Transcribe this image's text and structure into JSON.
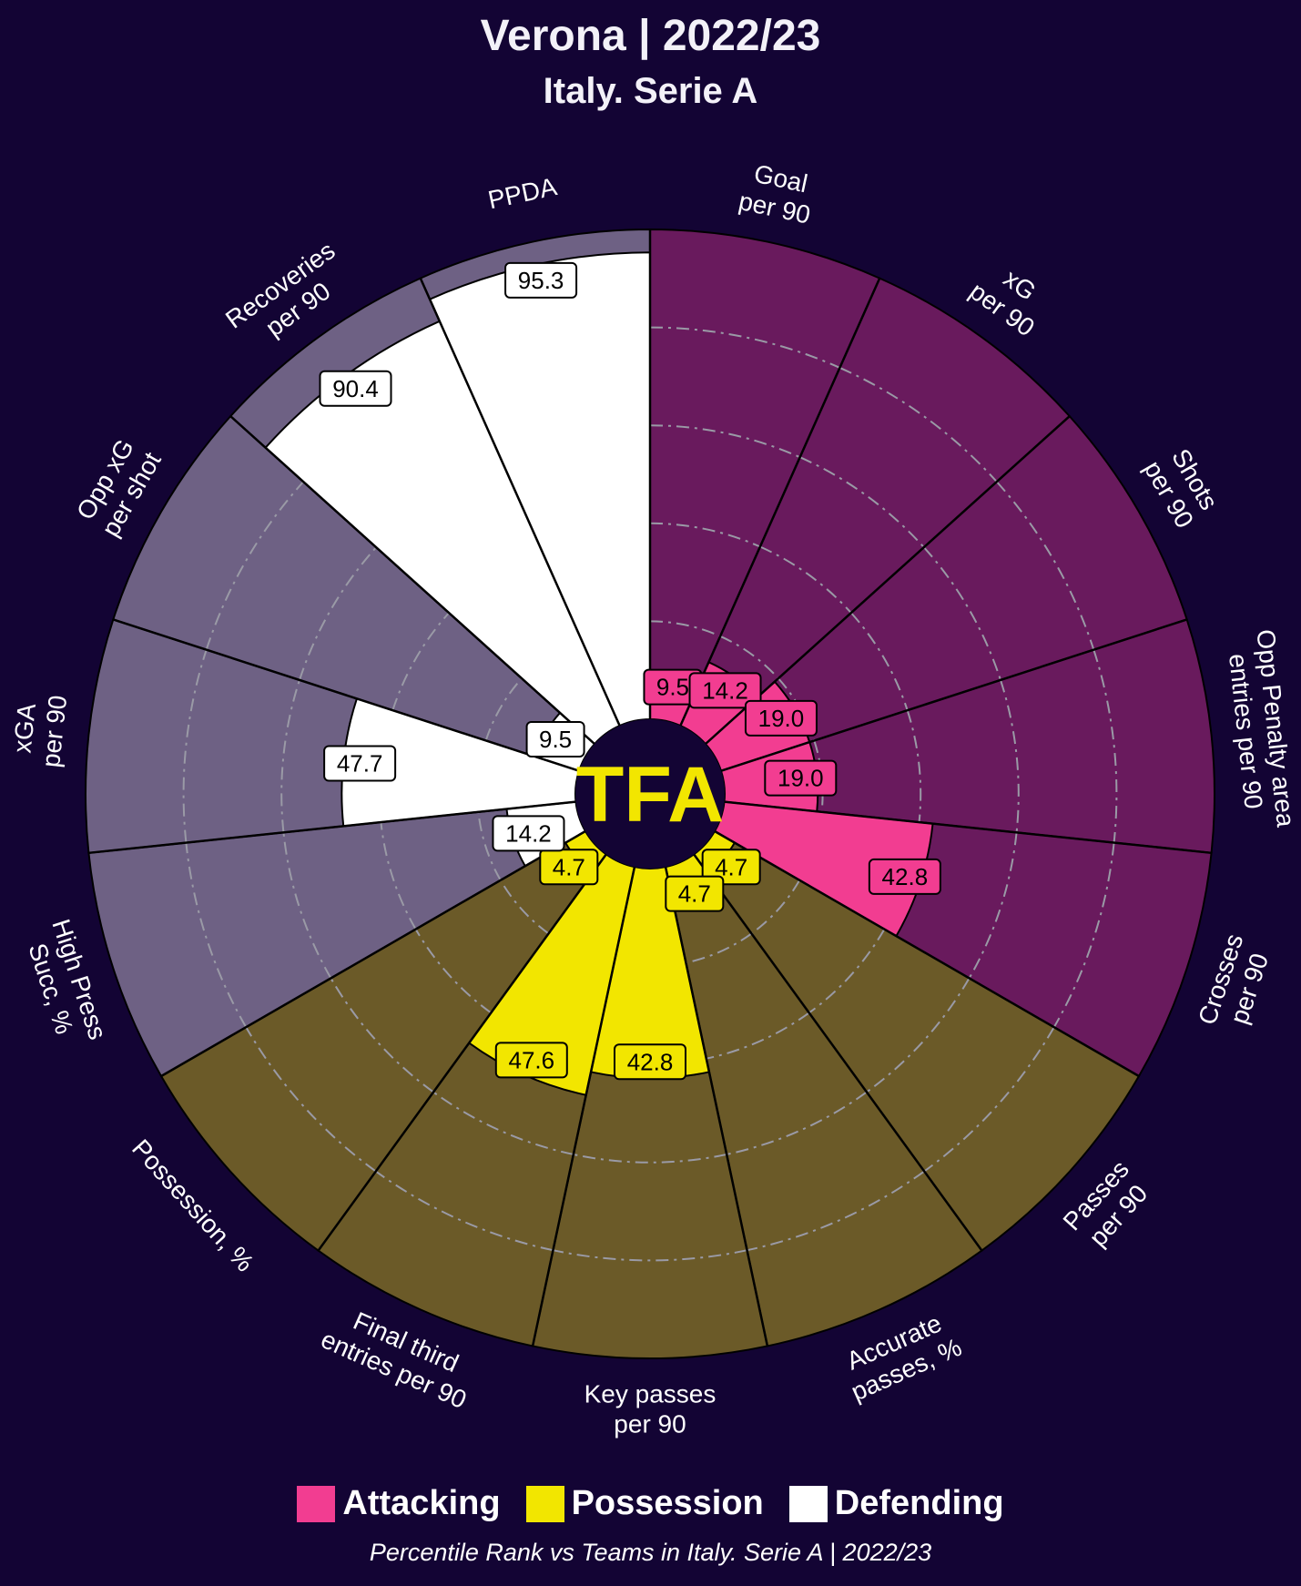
{
  "header": {
    "title": "Verona | 2022/23",
    "subtitle": "Italy. Serie A"
  },
  "logo": {
    "text": "TFA",
    "color": "#f2e600"
  },
  "legend": [
    {
      "label": "Attacking",
      "color": "#f23d91"
    },
    {
      "label": "Possession",
      "color": "#f2e600"
    },
    {
      "label": "Defending",
      "color": "#ffffff"
    }
  ],
  "footer": "Percentile Rank vs Teams in Italy. Serie A | 2022/23",
  "colors": {
    "background": "#130434",
    "Attacking": {
      "bar": "#f23d91",
      "slice": "#691a5d"
    },
    "Possession": {
      "bar": "#f2e600",
      "slice": "#6b5a28"
    },
    "Defending": {
      "bar": "#ffffff",
      "slice": "#6e6184"
    }
  },
  "chart_data": {
    "type": "pizza",
    "value_scale": "percentile",
    "range": [
      0,
      100
    ],
    "gridlines": [
      20,
      40,
      60,
      80
    ],
    "start_angle_deg": 90,
    "direction": "clockwise",
    "categories": [
      {
        "metric": "Goal per 90",
        "group": "Attacking",
        "value": 9.5
      },
      {
        "metric": "xG per 90",
        "group": "Attacking",
        "value": 14.2
      },
      {
        "metric": "Shots per 90",
        "group": "Attacking",
        "value": 19.0
      },
      {
        "metric": "Opp Penalty area entries per 90",
        "group": "Attacking",
        "value": 19.0
      },
      {
        "metric": "Crosses per 90",
        "group": "Attacking",
        "value": 42.8
      },
      {
        "metric": "Passes per 90",
        "group": "Possession",
        "value": 4.7
      },
      {
        "metric": "Accurate passes, %",
        "group": "Possession",
        "value": 4.7
      },
      {
        "metric": "Key passes per 90",
        "group": "Possession",
        "value": 42.8
      },
      {
        "metric": "Final third entries per 90",
        "group": "Possession",
        "value": 47.6
      },
      {
        "metric": "Possession, %",
        "group": "Possession",
        "value": 4.7
      },
      {
        "metric": "High Press Succ, %",
        "group": "Defending",
        "value": 14.2
      },
      {
        "metric": "xGA per 90",
        "group": "Defending",
        "value": 47.7
      },
      {
        "metric": "Opp xG per shot",
        "group": "Defending",
        "value": 9.5
      },
      {
        "metric": "Recoveries per 90",
        "group": "Defending",
        "value": 90.4
      },
      {
        "metric": "PPDA",
        "group": "Defending",
        "value": 95.3
      }
    ],
    "param_labels": [
      [
        "Goal",
        "per 90"
      ],
      [
        "xG",
        "per 90"
      ],
      [
        "Shots",
        "per 90"
      ],
      [
        "Opp Penalty area",
        "entries per 90"
      ],
      [
        "Crosses",
        "per 90"
      ],
      [
        "Passes",
        "per 90"
      ],
      [
        "Accurate",
        "passes, %"
      ],
      [
        "Key passes",
        "per 90"
      ],
      [
        "Final third",
        "entries per 90"
      ],
      [
        "Possession, %"
      ],
      [
        "High Press",
        "Succ, %"
      ],
      [
        "xGA",
        "per 90"
      ],
      [
        "Opp xG",
        "per shot"
      ],
      [
        "Recoveries",
        "per 90"
      ],
      [
        "PPDA"
      ]
    ],
    "value_labels": [
      "9.5",
      "14.2",
      "19.0",
      "19.0",
      "42.8",
      "4.7",
      "4.7",
      "42.8",
      "47.6",
      "4.7",
      "14.2",
      "47.7",
      "9.5",
      "90.4",
      "95.3"
    ]
  }
}
